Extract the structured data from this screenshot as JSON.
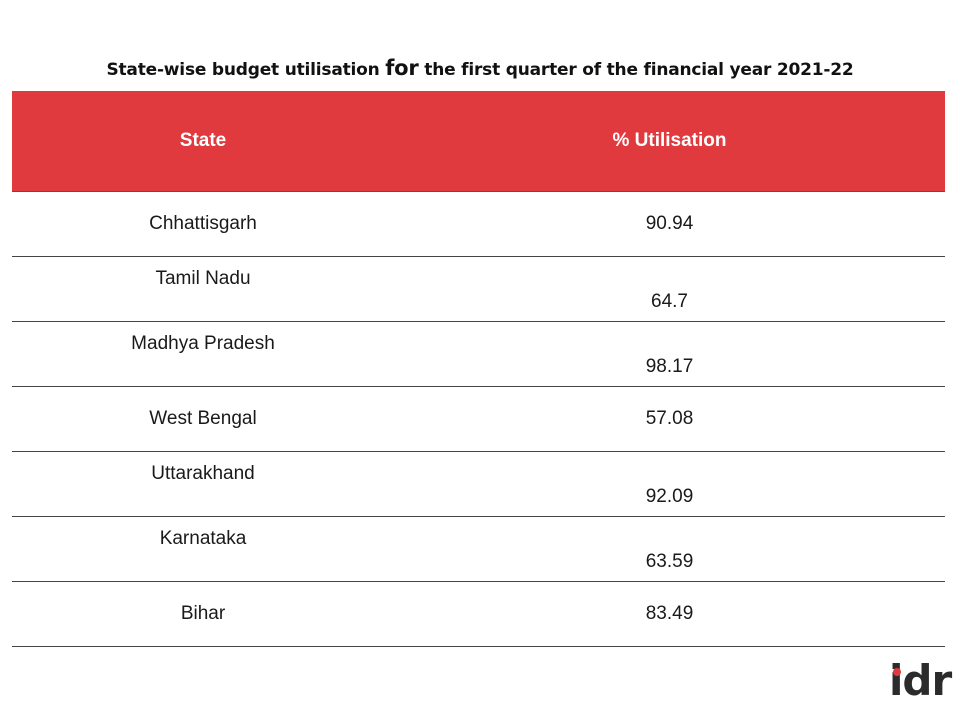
{
  "chart_data": {
    "type": "table",
    "title_parts": [
      "State-wise budget utilisation ",
      "for",
      " the first quarter of the financial year 2021-22"
    ],
    "columns": [
      "State",
      "% Utilisation"
    ],
    "rows": [
      {
        "state": "Chhattisgarh",
        "utilisation": "90.94",
        "align": "middle"
      },
      {
        "state": "Tamil Nadu",
        "utilisation": "64.7",
        "align": "split"
      },
      {
        "state": "Madhya Pradesh",
        "utilisation": "98.17",
        "align": "split"
      },
      {
        "state": "West Bengal",
        "utilisation": "57.08",
        "align": "middle"
      },
      {
        "state": "Uttarakhand",
        "utilisation": "92.09",
        "align": "split"
      },
      {
        "state": "Karnataka",
        "utilisation": "63.59",
        "align": "split"
      },
      {
        "state": "Bihar",
        "utilisation": "83.49",
        "align": "middle"
      }
    ],
    "header_color": "#e0393e"
  },
  "logo": {
    "text": "idr",
    "accent_color": "#e0393e"
  }
}
